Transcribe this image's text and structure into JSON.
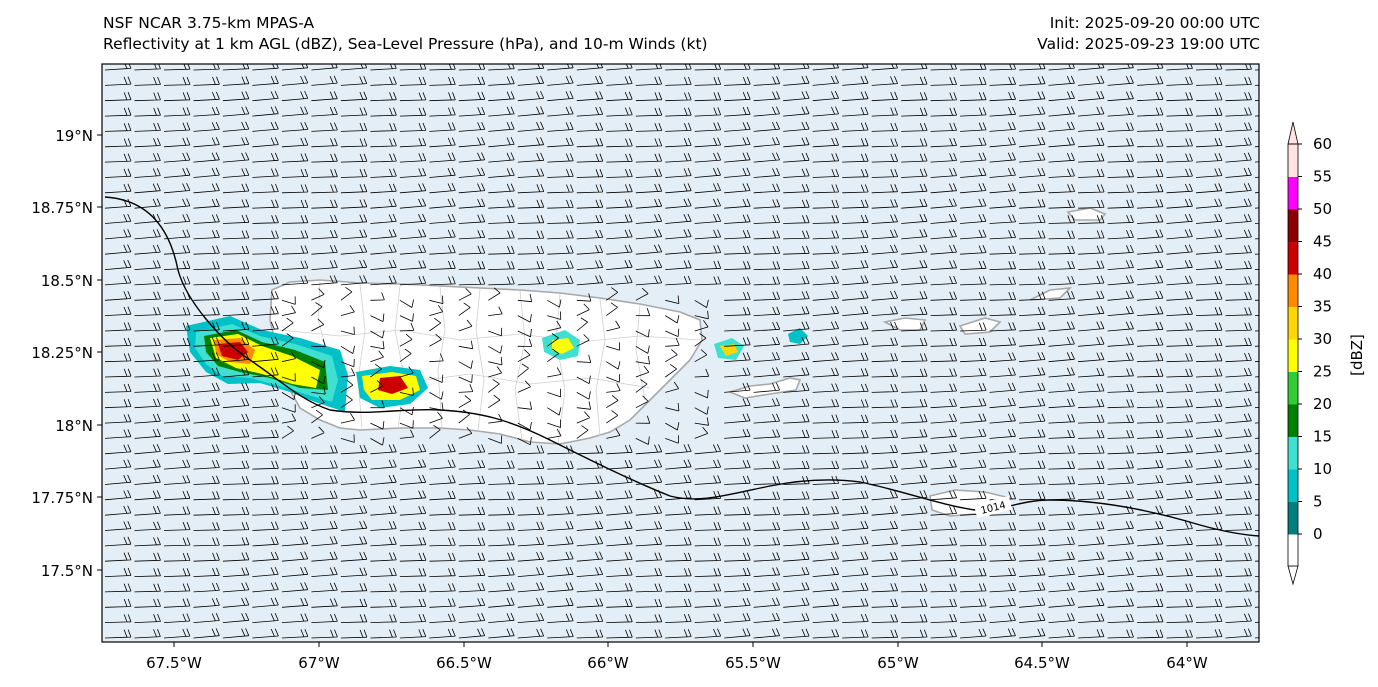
{
  "title": {
    "left_line1": "NSF NCAR 3.75-km MPAS-A",
    "left_line2": "Reflectivity at 1 km AGL (dBZ), Sea-Level Pressure (hPa), and 10-m Winds (kt)",
    "right_line1": "Init: 2025-09-20 00:00 UTC",
    "right_line2": "Valid: 2025-09-23 19:00 UTC"
  },
  "map": {
    "lon_ticks": [
      "67.5°W",
      "67°W",
      "66.5°W",
      "66°W",
      "65.5°W",
      "65°W",
      "64.5°W",
      "64°W"
    ],
    "lon_values": [
      -67.5,
      -67.0,
      -66.5,
      -66.0,
      -65.5,
      -65.0,
      -64.5,
      -64.0
    ],
    "lat_ticks": [
      "19°N",
      "18.75°N",
      "18.5°N",
      "18.25°N",
      "18°N",
      "17.75°N",
      "17.5°N"
    ],
    "lat_values": [
      19.0,
      18.75,
      18.5,
      18.25,
      18.0,
      17.75,
      17.5
    ],
    "extent": {
      "lon_min": -67.75,
      "lon_max": -63.75,
      "lat_min": 17.27,
      "lat_max": 19.25
    },
    "isobar_label": "1014",
    "colors": {
      "ocean": "#e4eef6",
      "coast": "#9a9a9a",
      "isobar": "#000000",
      "barb": "#000000"
    }
  },
  "colorbar": {
    "label": "[dBZ]",
    "ticks": [
      "60",
      "55",
      "50",
      "45",
      "40",
      "35",
      "30",
      "25",
      "20",
      "15",
      "10",
      "5",
      "0"
    ],
    "levels": [
      0,
      5,
      10,
      15,
      20,
      25,
      30,
      35,
      40,
      45,
      50,
      55,
      60
    ],
    "colors": [
      "#007e80",
      "#00c0c8",
      "#40e0d0",
      "#008000",
      "#32cd32",
      "#ffff00",
      "#ffd700",
      "#ff8c00",
      "#cc0000",
      "#8b0000",
      "#ff00ff",
      "#ffe4e1"
    ]
  }
}
